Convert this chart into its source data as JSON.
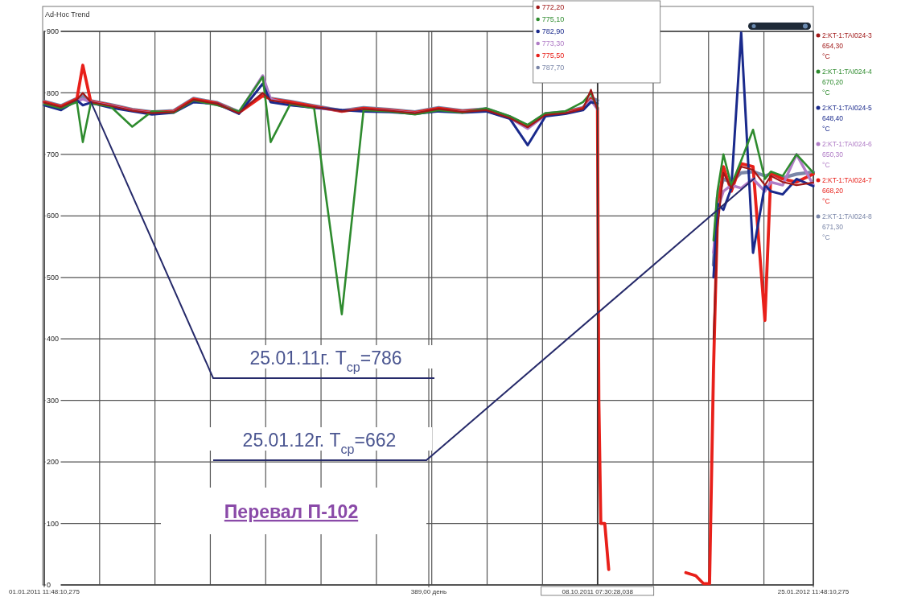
{
  "chart_data": {
    "type": "line",
    "title": "Ad-Hoc Trend",
    "x": [
      "2011-01-01T11:48",
      "2011-01-10",
      "2011-01-18",
      "2011-01-21",
      "2011-01-25",
      "2011-02-04",
      "2011-02-15",
      "2011-02-25",
      "2011-03-08",
      "2011-03-18",
      "2011-03-30",
      "2011-04-10",
      "2011-04-22",
      "2011-04-26",
      "2011-05-06",
      "2011-05-18",
      "2011-06-01",
      "2011-06-12",
      "2011-06-25",
      "2011-07-08",
      "2011-07-20",
      "2011-08-01",
      "2011-08-13",
      "2011-08-25",
      "2011-09-03",
      "2011-09-12",
      "2011-09-22",
      "2011-10-01",
      "2011-10-05",
      "2011-10-08T07:30",
      "2011-10-09",
      "2011-10-10",
      "2011-10-12",
      "2011-10-14",
      "2011-10-20",
      "2011-11-22",
      "2011-11-27",
      "2011-12-01",
      "2011-12-04",
      "2011-12-06",
      "2011-12-08",
      "2011-12-11",
      "2011-12-15",
      "2011-12-20",
      "2011-12-26",
      "2012-01-01",
      "2012-01-04",
      "2012-01-10",
      "2012-01-17",
      "2012-01-25T11:48"
    ],
    "xlim": [
      "2011-01-01T11:48",
      "2012-01-25T11:48"
    ],
    "xticks": [
      {
        "value": "2011-01-01T11:48",
        "label": "01.01.2011 11:48:10,275"
      },
      {
        "value": "2011-01-29T11:48",
        "label": null
      },
      {
        "value": "2011-02-26T11:48",
        "label": null
      },
      {
        "value": "2011-03-26T11:48",
        "label": null
      },
      {
        "value": "2011-04-23T11:48",
        "label": null
      },
      {
        "value": "2011-05-21T11:48",
        "label": null
      },
      {
        "value": "2011-06-18T11:48",
        "label": null
      },
      {
        "value": "2011-07-14T23:48",
        "label": "389,00 день"
      },
      {
        "value": "2011-07-16T11:48",
        "label": null
      },
      {
        "value": "2011-08-13T11:48",
        "label": null
      },
      {
        "value": "2011-09-10T11:48",
        "label": null
      },
      {
        "value": "2011-10-08T11:48",
        "label": null
      },
      {
        "value": "2011-11-05T11:48",
        "label": null
      },
      {
        "value": "2011-12-03T11:48",
        "label": null
      },
      {
        "value": "2011-12-31T11:48",
        "label": null
      },
      {
        "value": "2012-01-25T11:48",
        "label": "25.01.2012 11:48:10,275"
      }
    ],
    "ylim": [
      0,
      900
    ],
    "yticks": [
      0,
      100,
      200,
      300,
      400,
      500,
      600,
      700,
      800,
      900
    ],
    "grid": true,
    "legend": "right",
    "series": [
      {
        "name": "2:KT-1:TAI024-3",
        "color": "#a01818",
        "values": [
          784,
          777,
          789,
          800,
          785,
          779,
          771,
          767,
          769,
          789,
          782,
          767,
          800,
          788,
          783,
          777,
          770,
          774,
          771,
          767,
          774,
          769,
          772,
          759,
          744,
          764,
          767,
          774,
          805,
          772.2,
          null,
          null,
          null,
          null,
          null,
          null,
          null,
          null,
          null,
          400,
          580,
          670,
          645,
          680,
          675,
          650,
          665,
          655,
          650,
          654.3
        ]
      },
      {
        "name": "2:KT-1:TAI024-4",
        "color": "#2e8b2e",
        "values": [
          782,
          775,
          785,
          720,
          783,
          778,
          745,
          770,
          768,
          788,
          780,
          770,
          826,
          720,
          782,
          775,
          440,
          772,
          770,
          765,
          772,
          768,
          775,
          762,
          748,
          767,
          770,
          785,
          800,
          775.1,
          null,
          null,
          null,
          null,
          null,
          null,
          null,
          null,
          null,
          560,
          640,
          700,
          650,
          690,
          740,
          660,
          672,
          665,
          700,
          670.2
        ]
      },
      {
        "name": "2:KT-1:TAI024-5",
        "color": "#1a2a8c",
        "values": [
          780,
          772,
          788,
          780,
          784,
          776,
          770,
          765,
          768,
          785,
          782,
          766,
          815,
          785,
          780,
          776,
          772,
          770,
          769,
          766,
          770,
          768,
          770,
          758,
          715,
          762,
          766,
          772,
          785,
          782.9,
          null,
          null,
          null,
          null,
          null,
          null,
          null,
          null,
          null,
          500,
          620,
          610,
          645,
          898,
          540,
          650,
          640,
          635,
          660,
          648.4
        ]
      },
      {
        "name": "2:KT-1:TAI024-6",
        "color": "#b07cc6",
        "values": [
          783,
          776,
          786,
          790,
          785,
          779,
          771,
          767,
          769,
          787,
          781,
          768,
          828,
          790,
          781,
          776,
          771,
          773,
          771,
          767,
          772,
          769,
          771,
          759,
          742,
          764,
          767,
          773,
          788,
          773.3,
          null,
          null,
          null,
          null,
          null,
          null,
          null,
          null,
          null,
          540,
          610,
          640,
          650,
          645,
          660,
          640,
          655,
          650,
          700,
          650.3
        ]
      },
      {
        "name": "2:KT-1:TAI024-7",
        "color": "#e8201a",
        "values": [
          785,
          778,
          790,
          845,
          786,
          780,
          772,
          768,
          770,
          790,
          783,
          768,
          795,
          790,
          785,
          778,
          770,
          775,
          772,
          768,
          775,
          770,
          773,
          760,
          745,
          765,
          768,
          775,
          790,
          775.5,
          300,
          100,
          100,
          25,
          null,
          20,
          15,
          2,
          2,
          350,
          600,
          680,
          640,
          685,
          680,
          430,
          670,
          660,
          655,
          668.2
        ]
      },
      {
        "name": "2:KT-1:TAI024-8",
        "color": "#7a86a8",
        "values": [
          786,
          779,
          791,
          795,
          787,
          781,
          773,
          769,
          771,
          791,
          784,
          769,
          797,
          791,
          786,
          779,
          771,
          776,
          773,
          769,
          776,
          771,
          774,
          761,
          746,
          766,
          769,
          776,
          792,
          787.7,
          null,
          null,
          null,
          null,
          null,
          null,
          null,
          null,
          null,
          520,
          630,
          660,
          655,
          670,
          672,
          665,
          668,
          662,
          668,
          671.3
        ]
      }
    ],
    "ref_lines": [
      {
        "axis": "x",
        "value": "2011-10-08T07:30",
        "label": "08.10.2011 07:30:28,038",
        "color": "#333333"
      }
    ],
    "annotations": [
      "772,20",
      "775,10",
      "782,90",
      "773,30",
      "775,50",
      "787,70",
      "654,30 °C",
      "670,20 °C",
      "648,40 °C",
      "650,30 °C",
      "668,20 °C",
      "671,30 °C",
      {
        "text": "25.01.11г. T$_{ср}$=786",
        "x": "2011-01-25",
        "y": 786
      },
      {
        "text": "25.01.12г. T$_{ср}$=662",
        "x": "2011-12-27",
        "y": 662
      },
      "Перевал П-102"
    ]
  }
}
